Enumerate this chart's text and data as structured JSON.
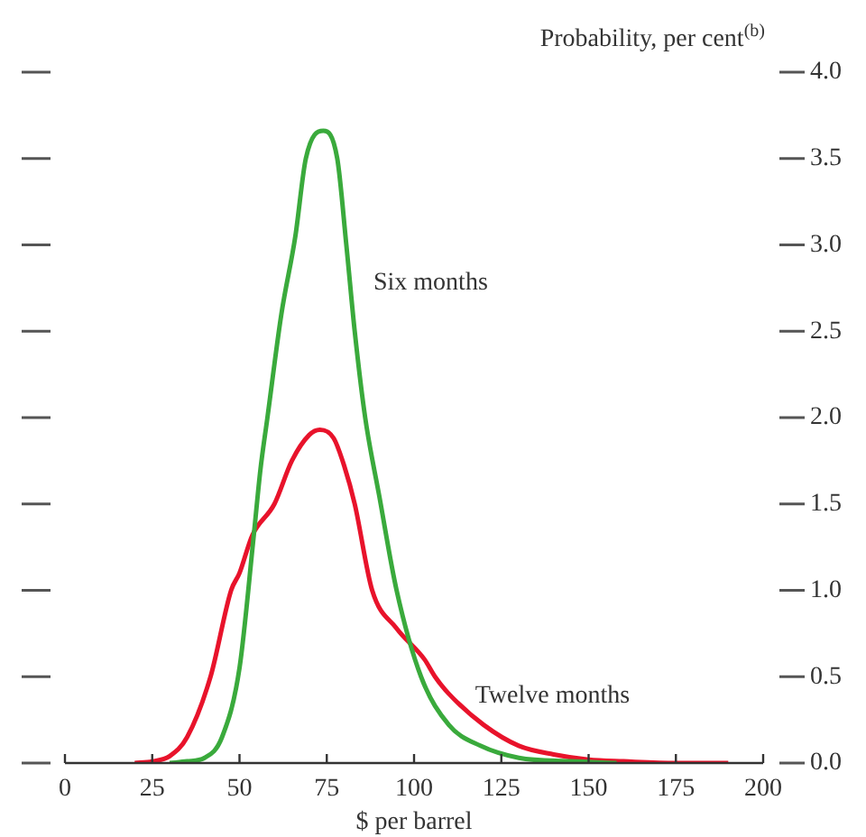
{
  "chart_data": {
    "type": "line",
    "ylabel": "Probability, per cent$^{(b)}$",
    "xlabel": "$ per barrel",
    "xlim": [
      0,
      200
    ],
    "xticks": [
      0,
      25,
      50,
      75,
      100,
      125,
      150,
      175,
      200
    ],
    "ylim": [
      0,
      4
    ],
    "yticks": [
      {
        "value": 0,
        "label": "0.0"
      },
      {
        "value": 0.5,
        "label": "0.5"
      },
      {
        "value": 1,
        "label": "1.0"
      },
      {
        "value": 1.5,
        "label": "1.5"
      },
      {
        "value": 2,
        "label": "2.0"
      },
      {
        "value": 2.5,
        "label": "2.5"
      },
      {
        "value": 3,
        "label": "3.0"
      },
      {
        "value": 3.5,
        "label": "3.5"
      },
      {
        "value": 4,
        "label": "4.0"
      }
    ],
    "grid": false,
    "legend": false,
    "marker": "none",
    "line_style": "solid",
    "series": [
      {
        "name": "Six months",
        "color": "#3aaa3c",
        "x": [
          30,
          35,
          40,
          45,
          50,
          54,
          56,
          58,
          62,
          66,
          69,
          74,
          78,
          80.6,
          83,
          86,
          90,
          95,
          102,
          110,
          119,
          130,
          145,
          158
        ],
        "values": [
          0,
          0.01,
          0.03,
          0.15,
          0.55,
          1.3,
          1.7,
          2.0,
          2.6,
          3.05,
          3.5,
          3.66,
          3.5,
          3.0,
          2.5,
          2.0,
          1.55,
          1.0,
          0.5,
          0.22,
          0.1,
          0.03,
          0.01,
          0
        ]
      },
      {
        "name": "Twelve months",
        "color": "#e8132b",
        "x": [
          20,
          25,
          30,
          35,
          41.7,
          47.6,
          50,
          53.7,
          60,
          65,
          70,
          73,
          77,
          80,
          83,
          88,
          95,
          103,
          106,
          110,
          120,
          130,
          140,
          150,
          160,
          175,
          190
        ],
        "values": [
          0,
          0.01,
          0.04,
          0.15,
          0.5,
          1.0,
          1.1,
          1.32,
          1.5,
          1.75,
          1.9,
          1.93,
          1.88,
          1.72,
          1.5,
          1.0,
          0.78,
          0.6,
          0.5,
          0.4,
          0.22,
          0.1,
          0.05,
          0.02,
          0.01,
          0,
          0
        ]
      }
    ]
  }
}
